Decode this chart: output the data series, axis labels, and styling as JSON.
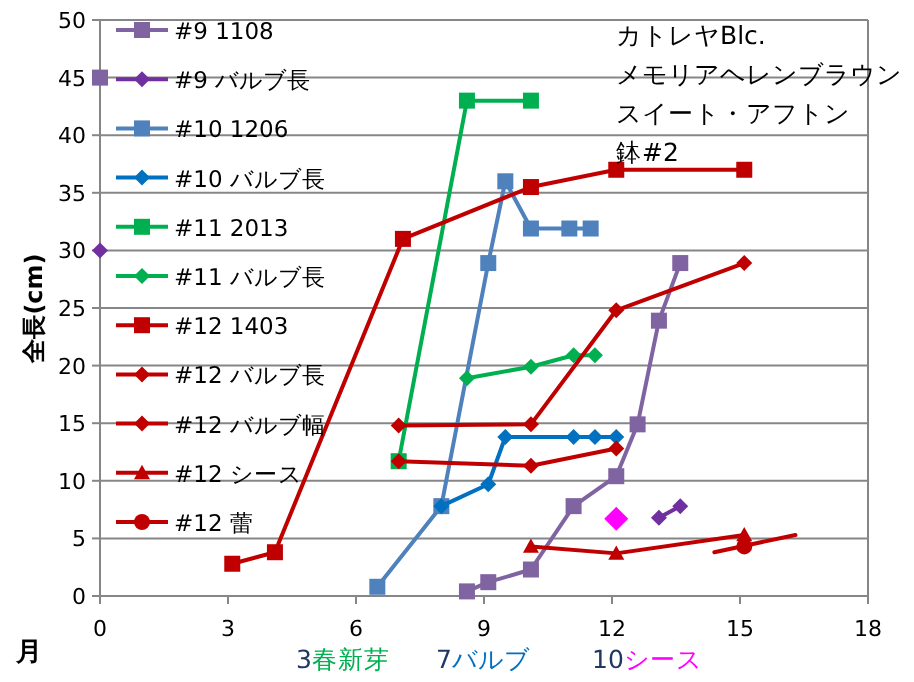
{
  "chart_data": {
    "type": "line",
    "title": "カトレヤBlc.メモリアヘレンブラウンスイート・アフトン鉢#2",
    "xlabel": "月",
    "ylabel": "全長(cm)",
    "annotations": [
      "3春新芽",
      "7バルブ",
      "10シース"
    ],
    "xlim": [
      0,
      18
    ],
    "xticks": [
      0,
      3,
      6,
      9,
      12,
      15,
      18
    ],
    "ylim": [
      0,
      50
    ],
    "yticks": [
      0,
      5,
      10,
      15,
      20,
      25,
      30,
      35,
      40,
      45,
      50
    ],
    "grid": "y",
    "legend": "top left",
    "series": [
      {
        "name": "#9 1108",
        "color": "#8064a2",
        "marker": "square",
        "x": [
          8.6,
          9.1,
          10.1,
          11.1,
          12.1,
          12.6,
          13.1,
          13.6
        ],
        "values": [
          0.4,
          1.2,
          2.3,
          7.8,
          10.4,
          14.9,
          23.9,
          28.9
        ]
      },
      {
        "type": "scatter",
        "color": "#8064a2",
        "marker": "square",
        "x": [
          0
        ],
        "values": [
          45
        ]
      },
      {
        "type": "scatter",
        "color": "#7030a0",
        "marker": "diamond",
        "x": [
          0
        ],
        "values": [
          30
        ]
      },
      {
        "name": "#9 バルブ長",
        "color": "#7030a0",
        "marker": "diamond",
        "x": [
          13.1,
          13.6
        ],
        "values": [
          6.8,
          7.8
        ]
      },
      {
        "name": "#10 1206",
        "color": "#4f81bd",
        "marker": "square",
        "x": [
          6.5,
          8,
          9.1,
          9.5,
          10.1,
          11,
          11.5
        ],
        "values": [
          0.8,
          7.8,
          28.9,
          36,
          31.9,
          31.9,
          31.9
        ]
      },
      {
        "name": "#10 バルブ長",
        "color": "#0070c0",
        "marker": "diamond",
        "x": [
          8,
          9.1,
          9.5,
          11.1,
          11.6,
          12.1
        ],
        "values": [
          7.8,
          9.7,
          13.8,
          13.8,
          13.8,
          13.8
        ]
      },
      {
        "name": "#11 2013",
        "color": "#00b050",
        "marker": "square",
        "x": [
          7,
          8.6,
          10.1
        ],
        "values": [
          11.7,
          43,
          43
        ]
      },
      {
        "name": "#11 バルブ長",
        "color": "#00b050",
        "marker": "diamond",
        "x": [
          8.6,
          10.1,
          11.1,
          11.6
        ],
        "values": [
          18.9,
          19.9,
          20.9,
          20.9
        ]
      },
      {
        "name": "#12 1403",
        "color": "#c00000",
        "marker": "square",
        "x": [
          3.1,
          4.1,
          7.1,
          10.1,
          12.1,
          15.1
        ],
        "values": [
          2.8,
          3.8,
          31,
          35.5,
          37,
          37
        ]
      },
      {
        "name": "#12 バルブ長",
        "color": "#c00000",
        "marker": "diamond",
        "x": [
          7,
          10.1,
          12.1
        ],
        "values": [
          11.7,
          11.3,
          12.8
        ]
      },
      {
        "name": "#12 バルブ幅",
        "color": "#c00000",
        "marker": "diamond",
        "x": [
          7,
          10.1,
          12.1,
          15.1
        ],
        "values": [
          14.8,
          14.9,
          24.8,
          28.9
        ]
      },
      {
        "name": "#12 シース",
        "color": "#c00000",
        "marker": "triangle",
        "x": [
          10.1,
          12.1,
          15.1
        ],
        "values": [
          4.3,
          3.7,
          5.3
        ]
      },
      {
        "name": "#12 蕾",
        "color": "#c00000",
        "marker": "circle",
        "x": [
          15.1
        ],
        "values": [
          4.3
        ]
      },
      {
        "type": "line",
        "color": "#c00000",
        "marker": "none",
        "x": [
          14.4,
          16.3
        ],
        "values": [
          3.8,
          5.3
        ]
      },
      {
        "type": "scatter",
        "color": "#ff00ff",
        "marker": "diamond",
        "x": [
          12.1
        ],
        "values": [
          6.7
        ]
      }
    ]
  }
}
